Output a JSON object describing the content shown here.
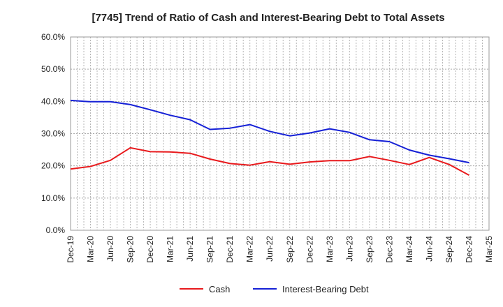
{
  "chart_data": {
    "type": "line",
    "title": "[7745]  Trend of Ratio of Cash and Interest-Bearing Debt to Total Assets",
    "xlabel": "",
    "ylabel": "",
    "x": [
      "Dec-19",
      "Mar-20",
      "Jun-20",
      "Sep-20",
      "Dec-20",
      "Mar-21",
      "Jun-21",
      "Sep-21",
      "Dec-21",
      "Mar-22",
      "Jun-22",
      "Sep-22",
      "Dec-22",
      "Mar-23",
      "Jun-23",
      "Sep-23",
      "Dec-23",
      "Mar-24",
      "Jun-24",
      "Sep-24",
      "Dec-24",
      "Mar-25"
    ],
    "y_ticks": [
      "0.0%",
      "10.0%",
      "20.0%",
      "30.0%",
      "40.0%",
      "50.0%",
      "60.0%"
    ],
    "ylim": [
      0,
      60
    ],
    "grid": true,
    "legend_position": "bottom",
    "series": [
      {
        "name": "Cash",
        "color": "#e8191c",
        "values": [
          19.0,
          19.8,
          21.7,
          25.6,
          24.4,
          24.3,
          23.9,
          22.1,
          20.7,
          20.2,
          21.3,
          20.5,
          21.2,
          21.6,
          21.6,
          22.9,
          21.7,
          20.4,
          22.6,
          20.4,
          17.1,
          null
        ]
      },
      {
        "name": "Interest-Bearing Debt",
        "color": "#1520d6",
        "values": [
          40.3,
          39.9,
          39.9,
          39.0,
          37.4,
          35.7,
          34.3,
          31.3,
          31.7,
          32.8,
          30.7,
          29.3,
          30.2,
          31.5,
          30.4,
          28.1,
          27.5,
          24.9,
          23.3,
          22.2,
          21.0,
          null
        ]
      }
    ]
  }
}
